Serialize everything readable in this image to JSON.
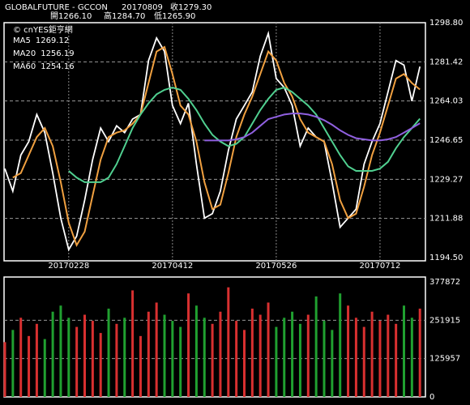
{
  "header": {
    "symbol": "GLOBALFUTURE - GCCON",
    "date": "20170809",
    "close": "收1279.30",
    "open": "開1266.10",
    "high": "高1284.70",
    "low": "低1265.90"
  },
  "watermark": "© cnYES鉅亨網",
  "chart_data": [
    {
      "type": "line",
      "categories": [
        null,
        null,
        null,
        null,
        null,
        null,
        null,
        null,
        "20170228",
        null,
        null,
        null,
        null,
        null,
        null,
        null,
        null,
        null,
        null,
        null,
        null,
        "20170412",
        null,
        null,
        null,
        null,
        null,
        null,
        null,
        null,
        null,
        null,
        null,
        null,
        "20170526",
        null,
        null,
        null,
        null,
        null,
        null,
        null,
        null,
        null,
        null,
        null,
        null,
        "20170712",
        null,
        null,
        null,
        null,
        null
      ],
      "series": [
        {
          "name": "Close",
          "color": "#ffffff",
          "values": [
            1234,
            1224,
            1240,
            1246,
            1258,
            1250,
            1232,
            1212,
            1198,
            1204,
            1220,
            1238,
            1252,
            1246,
            1253,
            1250,
            1256,
            1258,
            1282,
            1292,
            1286,
            1262,
            1254,
            1263,
            1236,
            1212,
            1214,
            1224,
            1242,
            1256,
            1262,
            1268,
            1284,
            1294,
            1274,
            1270,
            1262,
            1244,
            1252,
            1248,
            1246,
            1228,
            1208,
            1212,
            1216,
            1236,
            1246,
            1254,
            1268,
            1282,
            1280,
            1264,
            1279.3
          ]
        },
        {
          "name": "MA5",
          "color": "#f0a040",
          "values": [
            null,
            1230,
            1232,
            1240,
            1248,
            1252,
            1244,
            1228,
            1210,
            1200,
            1206,
            1222,
            1238,
            1248,
            1250,
            1251,
            1254,
            1258,
            1272,
            1286,
            1288,
            1276,
            1262,
            1258,
            1246,
            1228,
            1216,
            1218,
            1232,
            1248,
            1258,
            1266,
            1276,
            1286,
            1282,
            1272,
            1266,
            1256,
            1250,
            1248,
            1246,
            1236,
            1220,
            1212,
            1214,
            1226,
            1240,
            1250,
            1262,
            1274,
            1276,
            1272,
            1269.12
          ]
        },
        {
          "name": "MA20",
          "color": "#50d090",
          "values": [
            null,
            null,
            null,
            null,
            null,
            null,
            null,
            null,
            1233,
            1230,
            1228,
            1228,
            1228,
            1230,
            1236,
            1244,
            1252,
            1258,
            1263,
            1267,
            1269,
            1270,
            1269,
            1265,
            1260,
            1254,
            1249,
            1246,
            1244,
            1245,
            1248,
            1254,
            1260,
            1265,
            1269,
            1270,
            1268,
            1265,
            1262,
            1258,
            1252,
            1246,
            1240,
            1235,
            1233,
            1233,
            1233,
            1234,
            1237,
            1243,
            1248,
            1252,
            1256.19
          ]
        },
        {
          "name": "MA60",
          "color": "#9060e0",
          "values": [
            null,
            null,
            null,
            null,
            null,
            null,
            null,
            null,
            null,
            null,
            null,
            null,
            null,
            null,
            null,
            null,
            null,
            null,
            null,
            null,
            null,
            null,
            null,
            null,
            null,
            1246.5,
            1246.5,
            1246.5,
            1246.5,
            1247,
            1248,
            1250,
            1253,
            1256,
            1257,
            1258,
            1258.5,
            1258.5,
            1258,
            1257,
            1255.5,
            1253.5,
            1251,
            1249,
            1247.5,
            1247,
            1246.5,
            1246.5,
            1247,
            1248,
            1250,
            1252,
            1254.16
          ]
        }
      ],
      "ylim": [
        1194.5,
        1298.8
      ],
      "yticks": [
        {
          "value": 1298.8,
          "label": "1298.80"
        },
        1281.42,
        1264.03,
        1246.65,
        1229.27,
        1211.88,
        {
          "value": 1194.5,
          "label": "1194.50"
        }
      ],
      "grid": true
    },
    {
      "type": "bar",
      "values": [
        180000,
        220000,
        260000,
        200000,
        240000,
        190000,
        280000,
        300000,
        260000,
        230000,
        270000,
        250000,
        210000,
        290000,
        240000,
        260000,
        350000,
        200000,
        280000,
        310000,
        270000,
        250000,
        230000,
        340000,
        300000,
        260000,
        240000,
        280000,
        360000,
        250000,
        220000,
        290000,
        270000,
        310000,
        230000,
        260000,
        280000,
        240000,
        270000,
        330000,
        250000,
        220000,
        340000,
        300000,
        260000,
        230000,
        280000,
        250000,
        270000,
        240000,
        300000,
        260000,
        290000
      ],
      "up_color": "#d83030",
      "down_color": "#20a030",
      "ylim": [
        0,
        377872
      ],
      "yticks": [
        0,
        125957,
        251915,
        377872
      ],
      "grid": true
    }
  ]
}
